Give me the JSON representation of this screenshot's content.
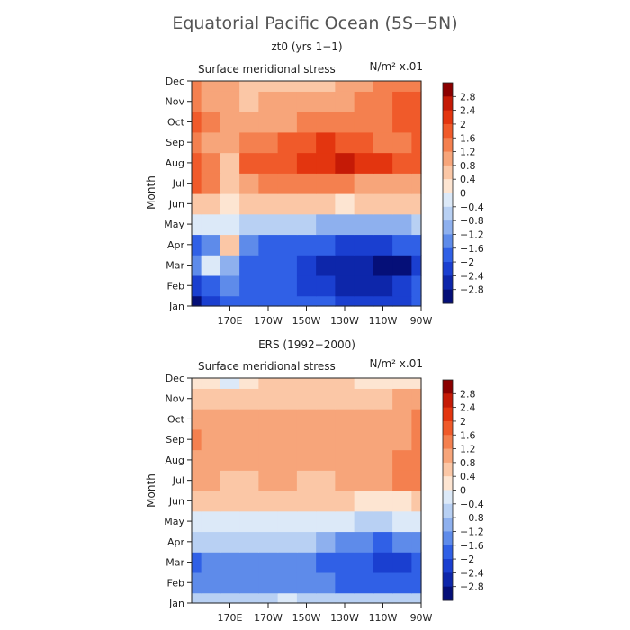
{
  "figure_title": "Equatorial Pacific Ocean (5S−5N)",
  "chart_data": [
    {
      "type": "heatmap",
      "title": "zt0 (yrs 1−1)",
      "subtitle": "Surface meridional stress",
      "units": "N/m² x.01",
      "xlabel": "",
      "ylabel": "Month",
      "x_ticks": [
        "170E",
        "170W",
        "150W",
        "130W",
        "110W",
        "90W"
      ],
      "y_ticks": [
        "Jan",
        "Feb",
        "Mar",
        "Apr",
        "May",
        "Jun",
        "Jul",
        "Aug",
        "Sep",
        "Oct",
        "Nov",
        "Dec"
      ],
      "longitudes_deg_east": [
        150,
        160,
        170,
        180,
        190,
        200,
        210,
        220,
        230,
        240,
        250,
        260,
        270
      ],
      "values": [
        [
          -3.0,
          -2.4,
          -1.8,
          -1.6,
          -1.6,
          -1.6,
          -2.0,
          -2.0,
          -2.2,
          -2.4,
          -2.4,
          -2.2,
          -1.8
        ],
        [
          -2.2,
          -1.8,
          -1.4,
          -1.6,
          -1.8,
          -2.0,
          -2.2,
          -2.4,
          -2.6,
          -2.6,
          -2.6,
          -2.4,
          -2.0
        ],
        [
          -1.4,
          -0.4,
          -1.0,
          -1.6,
          -2.0,
          -1.8,
          -2.2,
          -2.6,
          -2.8,
          -2.8,
          -3.0,
          -3.0,
          -2.4
        ],
        [
          -1.6,
          -1.4,
          0.4,
          -1.2,
          -1.6,
          -1.6,
          -1.8,
          -2.0,
          -2.2,
          -2.2,
          -2.2,
          -2.0,
          -1.6
        ],
        [
          -0.4,
          -0.4,
          -0.2,
          -0.6,
          -0.6,
          -0.8,
          -0.8,
          -1.0,
          -1.0,
          -1.0,
          -1.0,
          -1.0,
          -0.8
        ],
        [
          0.6,
          0.4,
          0.2,
          0.6,
          0.6,
          0.4,
          0.4,
          0.4,
          0.2,
          0.4,
          0.4,
          0.4,
          0.4
        ],
        [
          1.8,
          1.4,
          0.4,
          1.0,
          1.2,
          1.2,
          1.2,
          1.2,
          1.2,
          1.0,
          1.0,
          1.0,
          1.0
        ],
        [
          1.8,
          1.2,
          0.6,
          1.6,
          1.8,
          1.8,
          2.0,
          2.2,
          2.4,
          2.2,
          2.0,
          1.8,
          1.6
        ],
        [
          1.2,
          1.0,
          0.8,
          1.2,
          1.4,
          1.6,
          1.8,
          2.0,
          1.8,
          1.6,
          1.4,
          1.4,
          1.8
        ],
        [
          1.6,
          1.2,
          1.0,
          1.0,
          1.0,
          1.0,
          1.2,
          1.2,
          1.2,
          1.4,
          1.4,
          1.8,
          1.8
        ],
        [
          1.2,
          1.0,
          0.8,
          0.6,
          0.8,
          0.8,
          0.8,
          0.8,
          1.0,
          1.2,
          1.4,
          1.6,
          1.6
        ],
        [
          1.2,
          1.0,
          0.8,
          0.6,
          0.6,
          0.4,
          0.4,
          0.6,
          0.8,
          1.0,
          1.2,
          1.4,
          1.4
        ]
      ]
    },
    {
      "type": "heatmap",
      "title": "ERS (1992−2000)",
      "subtitle": "Surface meridional stress",
      "units": "N/m² x.01",
      "xlabel": "",
      "ylabel": "Month",
      "x_ticks": [
        "170E",
        "170W",
        "150W",
        "130W",
        "110W",
        "90W"
      ],
      "y_ticks": [
        "Jan",
        "Feb",
        "Mar",
        "Apr",
        "May",
        "Jun",
        "Jul",
        "Aug",
        "Sep",
        "Oct",
        "Nov",
        "Dec"
      ],
      "longitudes_deg_east": [
        150,
        160,
        170,
        180,
        190,
        200,
        210,
        220,
        230,
        240,
        250,
        260,
        270
      ],
      "values": [
        [
          -0.8,
          -0.6,
          -0.8,
          -0.6,
          -0.6,
          -0.4,
          -0.6,
          -0.6,
          -0.6,
          -0.8,
          -0.8,
          -0.8,
          -0.8
        ],
        [
          -1.4,
          -1.2,
          -1.2,
          -1.2,
          -1.2,
          -1.2,
          -1.2,
          -1.4,
          -1.6,
          -1.6,
          -1.8,
          -1.8,
          -1.6
        ],
        [
          -1.8,
          -1.2,
          -1.4,
          -1.4,
          -1.2,
          -1.2,
          -1.4,
          -1.6,
          -1.8,
          -2.0,
          -2.2,
          -2.2,
          -1.8
        ],
        [
          -0.8,
          -0.8,
          -0.8,
          -0.6,
          -0.8,
          -0.8,
          -0.8,
          -1.0,
          -1.2,
          -1.4,
          -1.6,
          -1.4,
          -1.2
        ],
        [
          -0.2,
          -0.2,
          -0.2,
          -0.2,
          -0.2,
          -0.2,
          -0.2,
          -0.4,
          -0.4,
          -0.6,
          -0.6,
          -0.4,
          -0.4
        ],
        [
          0.4,
          0.4,
          0.4,
          0.4,
          0.4,
          0.4,
          0.4,
          0.4,
          0.4,
          0.2,
          0.2,
          0.2,
          0.4
        ],
        [
          0.8,
          0.8,
          0.6,
          0.6,
          0.8,
          0.8,
          0.6,
          0.6,
          0.8,
          0.8,
          1.0,
          1.2,
          1.4
        ],
        [
          1.0,
          0.8,
          0.8,
          0.8,
          0.8,
          1.0,
          0.8,
          0.8,
          0.8,
          0.8,
          1.0,
          1.2,
          1.4
        ],
        [
          1.2,
          1.0,
          0.8,
          0.8,
          0.8,
          0.8,
          0.8,
          0.8,
          1.0,
          0.8,
          1.0,
          1.0,
          1.2
        ],
        [
          1.0,
          1.0,
          0.8,
          0.8,
          0.8,
          0.8,
          0.8,
          0.8,
          0.8,
          0.8,
          0.8,
          1.0,
          1.2
        ],
        [
          0.6,
          0.6,
          0.6,
          0.6,
          0.6,
          0.6,
          0.6,
          0.6,
          0.6,
          0.6,
          0.6,
          0.8,
          0.8
        ],
        [
          0.2,
          0.2,
          -0.2,
          0.2,
          0.4,
          0.4,
          0.4,
          0.4,
          0.4,
          0.2,
          0.2,
          0.2,
          0.2
        ]
      ]
    }
  ],
  "colorbar": {
    "tick_labels": [
      "2.8",
      "2.4",
      "2",
      "1.6",
      "1.2",
      "0.8",
      "0.4",
      "0",
      "−0.4",
      "−0.8",
      "−1.2",
      "−1.6",
      "−2",
      "−2.4",
      "−2.8"
    ],
    "colors": [
      "#8b0000",
      "#c51a06",
      "#e3350f",
      "#f05a2a",
      "#f4804f",
      "#f7a57a",
      "#fbc7a6",
      "#fde5d2",
      "#dce9f8",
      "#b8d0f3",
      "#8eb0ee",
      "#5e8bea",
      "#3060e6",
      "#1a3fd0",
      "#0d26aa",
      "#050f78"
    ]
  }
}
